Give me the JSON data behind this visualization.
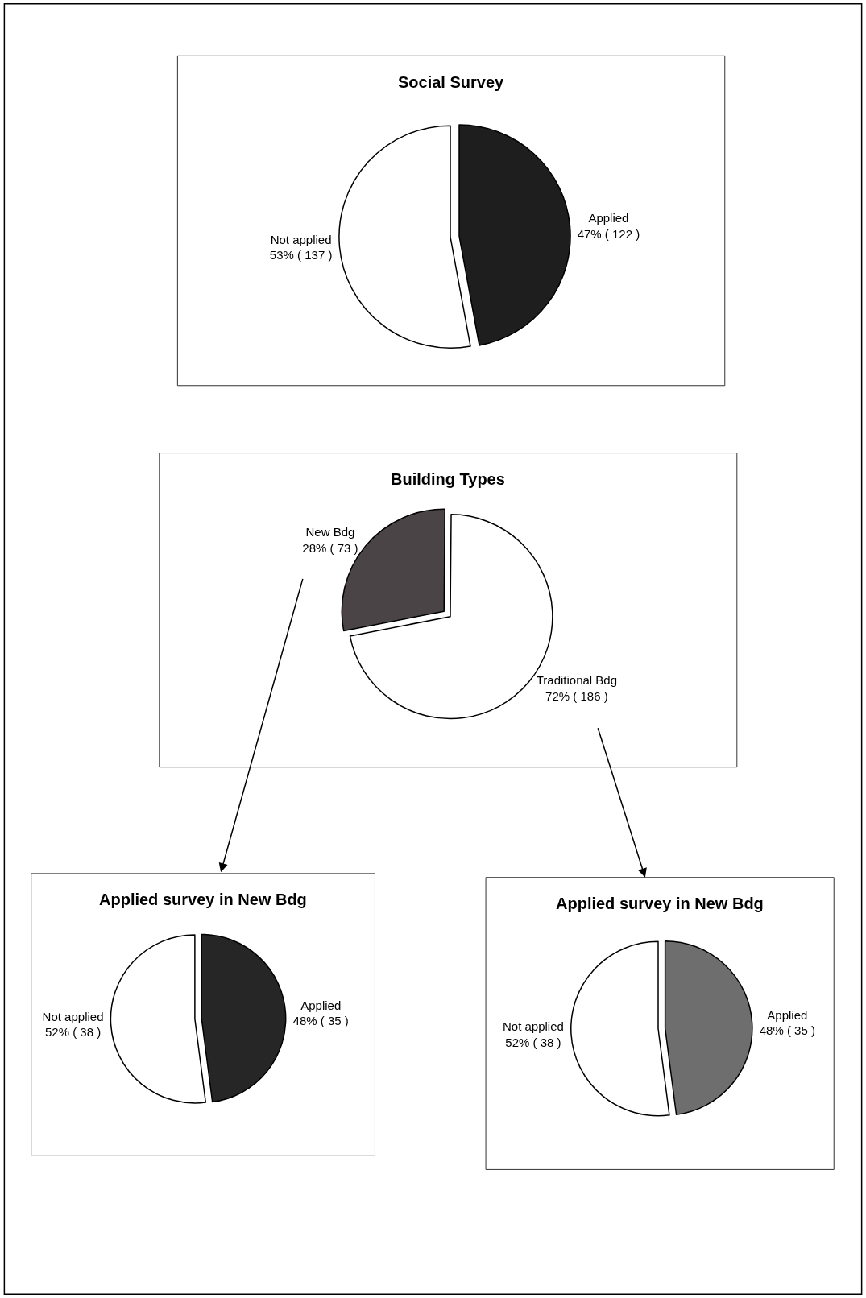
{
  "chart_data": [
    {
      "type": "pie",
      "title": "Social Survey",
      "categories": [
        "Applied",
        "Not applied"
      ],
      "values": [
        122,
        137
      ],
      "value_labels": [
        "47% ( 122 )",
        "53% ( 137 )"
      ],
      "colors": [
        "#1e1e1e",
        "#ffffff"
      ]
    },
    {
      "type": "pie",
      "title": "Building Types",
      "categories": [
        "New Bdg",
        "Traditional Bdg"
      ],
      "values": [
        73,
        186
      ],
      "value_labels": [
        "28% ( 73 )",
        "72% ( 186 )"
      ],
      "colors": [
        "#4a4446",
        "#ffffff"
      ]
    },
    {
      "type": "pie",
      "title": "Applied survey in New Bdg",
      "categories": [
        "Applied",
        "Not applied"
      ],
      "values": [
        35,
        38
      ],
      "value_labels": [
        "48% ( 35 )",
        "52% ( 38 )"
      ],
      "colors": [
        "#262626",
        "#ffffff"
      ]
    },
    {
      "type": "pie",
      "title": "Applied survey in New Bdg",
      "categories": [
        "Applied",
        "Not applied"
      ],
      "values": [
        35,
        38
      ],
      "value_labels": [
        "48% ( 35 )",
        "52% ( 38 )"
      ],
      "colors": [
        "#6e6e6e",
        "#ffffff"
      ]
    }
  ]
}
